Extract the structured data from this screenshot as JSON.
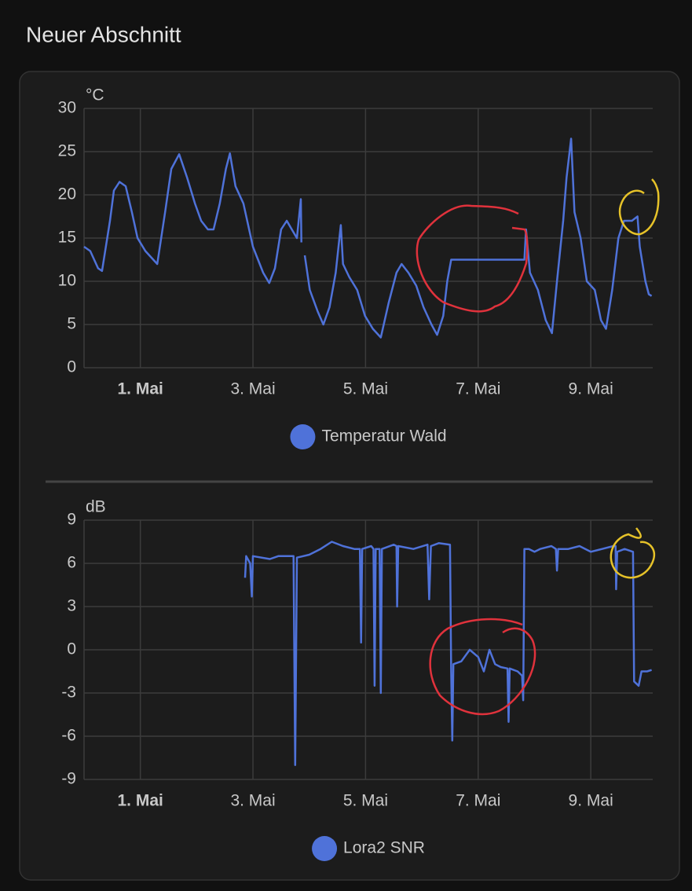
{
  "header": {
    "title": "Neuer Abschnitt"
  },
  "chart_data": [
    {
      "type": "line",
      "y_label": "°C",
      "x": [
        0,
        0.11,
        0.25,
        0.32,
        0.46,
        0.53,
        0.63,
        0.74,
        0.85,
        0.95,
        1.09,
        1.3,
        1.44,
        1.55,
        1.69,
        1.83,
        1.97,
        2.08,
        2.2,
        2.3,
        2.41,
        2.52,
        2.59,
        2.69,
        2.83,
        3.0,
        3.18,
        3.29,
        3.39,
        3.5,
        3.6,
        3.69,
        3.78,
        3.85,
        3.86,
        3.89,
        3.92,
        4.01,
        4.15,
        4.25,
        4.36,
        4.47,
        4.56,
        4.6,
        4.71,
        4.85,
        4.99,
        5.13,
        5.27,
        5.41,
        5.55,
        5.64,
        5.76,
        5.9,
        6.03,
        6.17,
        6.27,
        6.38,
        6.45,
        6.52,
        7.82,
        7.85,
        7.92,
        8.06,
        8.2,
        8.31,
        8.4,
        8.51,
        8.57,
        8.65,
        8.71,
        8.82,
        8.93,
        9.07,
        9.18,
        9.27,
        9.38,
        9.49,
        9.59,
        9.73,
        9.83,
        9.87,
        9.97,
        10.03,
        10.08
      ],
      "series": [
        {
          "name": "Temperatur Wald",
          "color": "#4f72d9",
          "values": [
            14,
            13.5,
            11.5,
            11.2,
            17,
            20.5,
            21.5,
            21,
            18,
            15,
            13.5,
            12,
            18,
            23,
            24.7,
            22,
            19,
            17,
            16,
            16,
            19,
            23,
            24.8,
            21,
            19,
            14,
            11,
            9.8,
            11.5,
            16,
            17,
            16,
            15,
            19.5,
            14.5,
            null,
            13,
            9,
            6.5,
            5,
            7,
            11,
            16.5,
            12,
            10.5,
            9,
            6,
            4.5,
            3.5,
            7.5,
            11,
            12,
            11,
            9.5,
            7,
            5,
            3.8,
            6,
            10,
            12.5,
            12.5,
            16,
            11,
            9,
            5.5,
            4,
            10,
            17,
            22,
            26.5,
            18,
            15,
            10,
            9,
            5.5,
            4.5,
            9,
            15,
            17,
            17,
            17.5,
            14,
            10,
            8.5,
            8.3
          ]
        }
      ],
      "xlim": [
        0,
        10.1
      ],
      "xticks": [
        {
          "value": 1,
          "label": "1. Mai"
        },
        {
          "value": 3,
          "label": "3. Mai"
        },
        {
          "value": 5,
          "label": "5. Mai"
        },
        {
          "value": 7,
          "label": "7. Mai"
        },
        {
          "value": 9,
          "label": "9. Mai"
        }
      ],
      "ylim": [
        0,
        30
      ],
      "yticks": [
        0,
        5,
        10,
        15,
        20,
        25,
        30
      ],
      "grid": true
    },
    {
      "type": "line",
      "y_label": "dB",
      "x": [
        2.86,
        2.88,
        2.95,
        2.98,
        3.0,
        3.3,
        3.45,
        3.72,
        3.75,
        3.78,
        4.0,
        4.2,
        4.4,
        4.6,
        4.8,
        4.9,
        4.92,
        4.94,
        5.1,
        5.14,
        5.16,
        5.18,
        5.25,
        5.27,
        5.29,
        5.5,
        5.55,
        5.56,
        5.58,
        5.85,
        6.1,
        6.13,
        6.16,
        6.3,
        6.5,
        6.52,
        6.54,
        6.56,
        6.7,
        6.85,
        7.0,
        7.1,
        7.2,
        7.3,
        7.4,
        7.52,
        7.54,
        7.56,
        7.7,
        7.78,
        7.8,
        7.82,
        7.9,
        8.0,
        8.1,
        8.3,
        8.38,
        8.4,
        8.42,
        8.6,
        8.8,
        9.0,
        9.2,
        9.4,
        9.44,
        9.45,
        9.47,
        9.6,
        9.75,
        9.77,
        9.85,
        9.9,
        10.0,
        10.08
      ],
      "series": [
        {
          "name": "Lora2 SNR",
          "color": "#4f72d9",
          "values": [
            5,
            6.5,
            6,
            3.7,
            6.5,
            6.3,
            6.5,
            6.5,
            -8,
            6.4,
            6.6,
            7,
            7.5,
            7.2,
            7,
            7,
            0.5,
            7,
            7.2,
            7,
            -2.5,
            7,
            7,
            -3,
            7,
            7.3,
            7.2,
            3,
            7.2,
            7,
            7.3,
            3.5,
            7.2,
            7.4,
            7.3,
            -1.5,
            -6.3,
            -1,
            -0.8,
            0,
            -0.5,
            -1.5,
            0,
            -1,
            -1.2,
            -1.3,
            -5,
            -1.3,
            -1.5,
            -1.8,
            -3.5,
            7,
            7,
            6.8,
            7,
            7.2,
            7,
            5.5,
            7,
            7,
            7.2,
            6.8,
            7,
            7.2,
            7.2,
            4.2,
            6.8,
            7,
            6.8,
            -2.2,
            -2.5,
            -1.5,
            -1.5,
            -1.4
          ]
        }
      ],
      "xlim": [
        0,
        10.1
      ],
      "xticks": [
        {
          "value": 1,
          "label": "1. Mai"
        },
        {
          "value": 3,
          "label": "3. Mai"
        },
        {
          "value": 5,
          "label": "5. Mai"
        },
        {
          "value": 7,
          "label": "7. Mai"
        },
        {
          "value": 9,
          "label": "9. Mai"
        }
      ],
      "ylim": [
        -9,
        9
      ],
      "yticks": [
        -9,
        -6,
        -3,
        0,
        3,
        6,
        9
      ],
      "grid": true
    }
  ]
}
